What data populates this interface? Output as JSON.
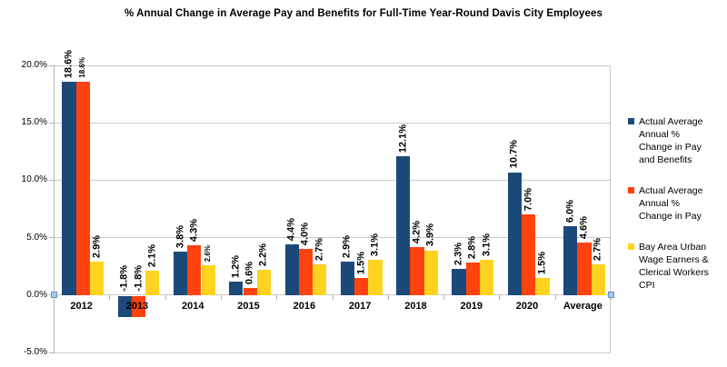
{
  "title": "% Annual Change in Average Pay and Benefits for Full-Time Year-Round Davis City Employees",
  "chart_data": {
    "type": "bar",
    "categories": [
      "2012",
      "2013",
      "2014",
      "2015",
      "2016",
      "2017",
      "2018",
      "2019",
      "2020",
      "Average"
    ],
    "series": [
      {
        "name": "Actual Average Annual % Change in Pay and Benefits",
        "legend_label": "Actual Average\nAnnual %\nChange in Pay\nand Benefits",
        "color": "#1b4a7a",
        "values": [
          18.6,
          -1.8,
          3.8,
          1.2,
          4.4,
          2.9,
          12.1,
          2.3,
          10.7,
          6.0
        ]
      },
      {
        "name": "Actual Average Annual % Change in Pay",
        "legend_label": "Actual Average\nAnnual %\nChange in Pay",
        "color": "#ff420e",
        "values": [
          18.6,
          -1.8,
          4.3,
          0.6,
          4.0,
          1.5,
          4.2,
          2.8,
          7.0,
          4.6
        ]
      },
      {
        "name": "Bay Area Urban Wage Earners & Clerical Workers CPI",
        "legend_label": "Bay Area Urban\nWage Earners &\nClerical Workers\nCPI",
        "color": "#ffd320",
        "values": [
          2.9,
          2.1,
          2.6,
          2.2,
          2.7,
          3.1,
          3.9,
          3.1,
          1.5,
          2.7
        ]
      }
    ],
    "value_label_suffix": "%",
    "small_value_labels": [
      [
        0,
        1
      ],
      [
        2,
        2
      ]
    ],
    "y_ticks": [
      {
        "label": "20.0%",
        "value": 20
      },
      {
        "label": "15.0%",
        "value": 15
      },
      {
        "label": "10.0%",
        "value": 10
      },
      {
        "label": "5.0%",
        "value": 5
      },
      {
        "label": "0.0%",
        "value": 0
      },
      {
        "label": "-5.0%",
        "value": -5
      }
    ],
    "ylim": [
      -5,
      20
    ],
    "grid": true,
    "legend_position": "right"
  }
}
